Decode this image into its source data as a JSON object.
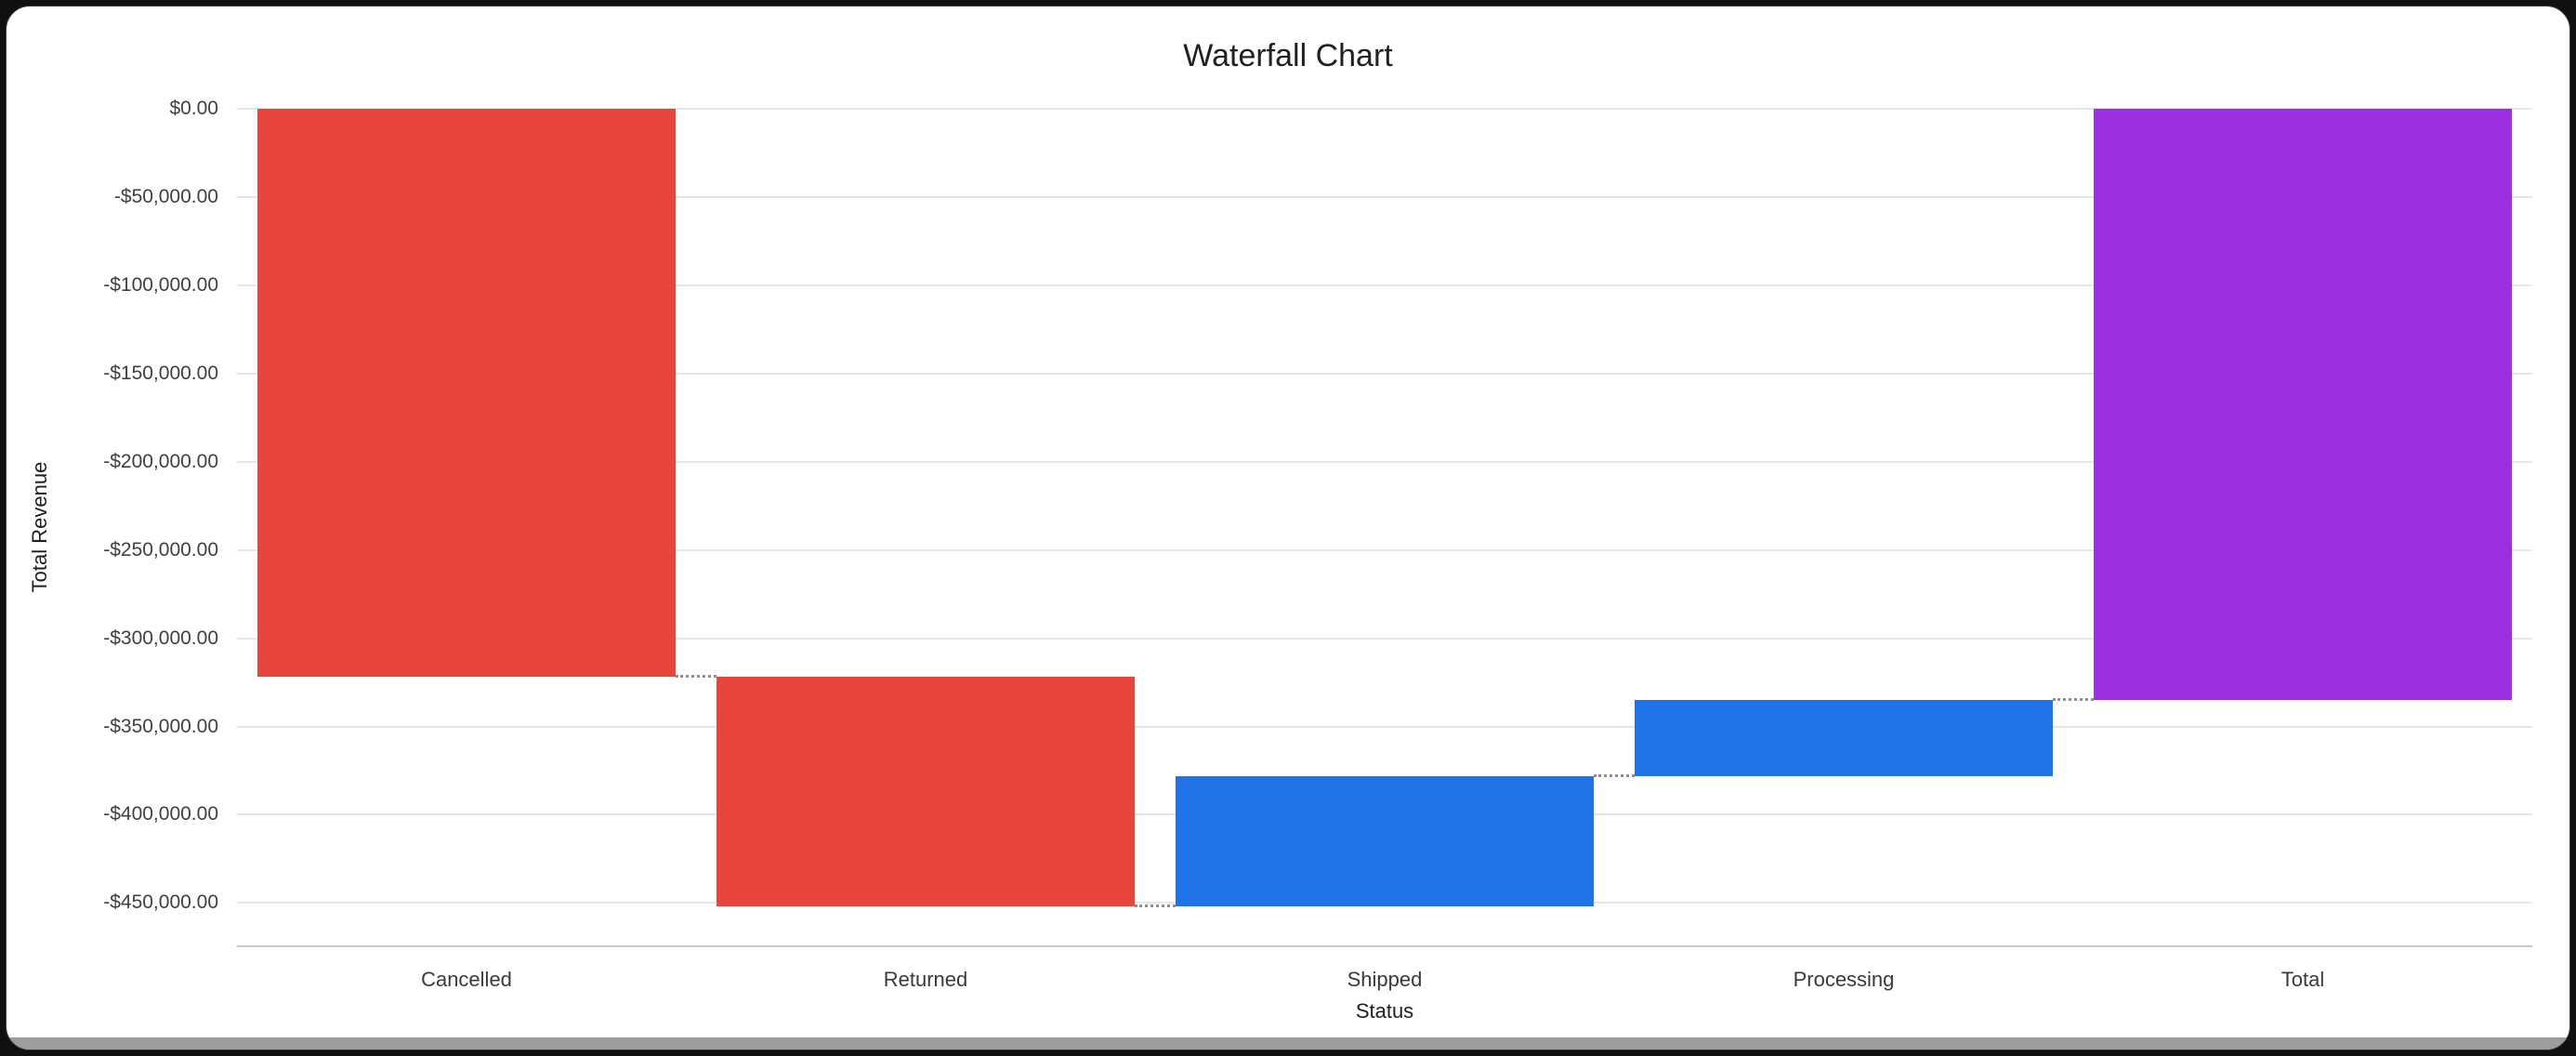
{
  "window": {
    "title": "Waterfall Chart"
  },
  "chart_data": {
    "type": "waterfall",
    "title": "Waterfall Chart",
    "xlabel": "Status",
    "ylabel": "Total Revenue",
    "categories": [
      "Cancelled",
      "Returned",
      "Shipped",
      "Processing",
      "Total"
    ],
    "series": [
      {
        "name": "Cancelled",
        "change": -322000,
        "cumulative": -322000,
        "role": "decrease"
      },
      {
        "name": "Returned",
        "change": -130000,
        "cumulative": -452000,
        "role": "decrease"
      },
      {
        "name": "Shipped",
        "change": 74000,
        "cumulative": -378000,
        "role": "increase"
      },
      {
        "name": "Processing",
        "change": 43000,
        "cumulative": -335000,
        "role": "increase"
      },
      {
        "name": "Total",
        "change": -335000,
        "cumulative": -335000,
        "role": "total"
      }
    ],
    "ylim": [
      -474000,
      0
    ],
    "ytick_step": 50000,
    "yticks": [
      {
        "value": 0,
        "label": "$0.00"
      },
      {
        "value": -50000,
        "label": "-$50,000.00"
      },
      {
        "value": -100000,
        "label": "-$100,000.00"
      },
      {
        "value": -150000,
        "label": "-$150,000.00"
      },
      {
        "value": -200000,
        "label": "-$200,000.00"
      },
      {
        "value": -250000,
        "label": "-$250,000.00"
      },
      {
        "value": -300000,
        "label": "-$300,000.00"
      },
      {
        "value": -350000,
        "label": "-$350,000.00"
      },
      {
        "value": -400000,
        "label": "-$400,000.00"
      },
      {
        "value": -450000,
        "label": "-$450,000.00"
      }
    ],
    "grid": true,
    "legend": "none",
    "colors": {
      "decrease": "#e8453c",
      "increase": "#2273e8",
      "total": "#9c30e0",
      "gridline": "#e6e6e6",
      "baseline": "#c9c9c9",
      "connector": "#8f8f8f"
    }
  }
}
